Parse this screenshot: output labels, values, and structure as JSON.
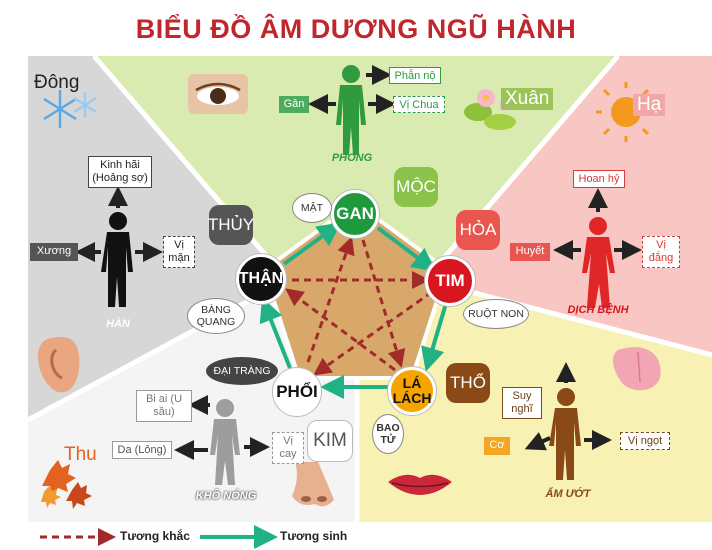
{
  "title": "BIỂU ĐỒ ÂM DƯƠNG NGŨ HÀNH",
  "seasons": {
    "winter": "Đông",
    "spring": "Xuân",
    "summer": "Hạ",
    "autumn": "Thu"
  },
  "organs": {
    "gan": "GAN",
    "tim": "TIM",
    "la_lach": "LÁ LÁCH",
    "phoi": "PHỔI",
    "than": "THẬN"
  },
  "elements": {
    "moc": "MỘC",
    "hoa": "HỎA",
    "tho": "THỔ",
    "kim": "KIM",
    "thuy": "THỦY"
  },
  "paired": {
    "mat": "MẬT",
    "ruot_non": "RUỘT NON",
    "bao_tu": "BAO TỬ",
    "dai_trang": "ĐẠI TRÀNG",
    "bang_quang": "BÀNG QUANG"
  },
  "factors": {
    "phong": "PHONG",
    "dich_benh": "DỊCH BỆNH",
    "am_uot": "ẨM ƯỚT",
    "kho_nong": "KHÔ NÓNG",
    "han": "HÀN"
  },
  "wood": {
    "emotion": "Phẫn nộ",
    "tissue": "Gân",
    "taste": "Vị Chua"
  },
  "fire": {
    "emotion": "Hoan hỷ",
    "tissue": "Huyết",
    "taste": "Vị đắng"
  },
  "earth": {
    "emotion": "Suy nghĩ",
    "tissue": "Cơ",
    "taste": "Vị ngọt"
  },
  "metal": {
    "emotion": "Bi ai (U sầu)",
    "tissue": "Da (Lông)",
    "taste": "Vị cay"
  },
  "water": {
    "emotion": "Kinh hãi (Hoảng sợ)",
    "tissue": "Xương",
    "taste": "Vị mặn"
  },
  "legend": {
    "khac": "Tương khắc",
    "sinh": "Tương sinh"
  },
  "colors": {
    "wood": "#d9ebb0",
    "fire": "#f8c7c3",
    "earth": "#f7f1b4",
    "metal": "#f4f4f4",
    "water": "#d7d7d7",
    "center": "#d8a86a",
    "arrow_sinh": "#20b284",
    "arrow_khac": "#a22a2a"
  },
  "icons": [
    "eye-icon",
    "ear-icon",
    "tongue-icon",
    "lips-icon",
    "nose-icon",
    "snowflake-icon",
    "flower-icon",
    "sun-icon",
    "autumn-leaf-icon"
  ]
}
